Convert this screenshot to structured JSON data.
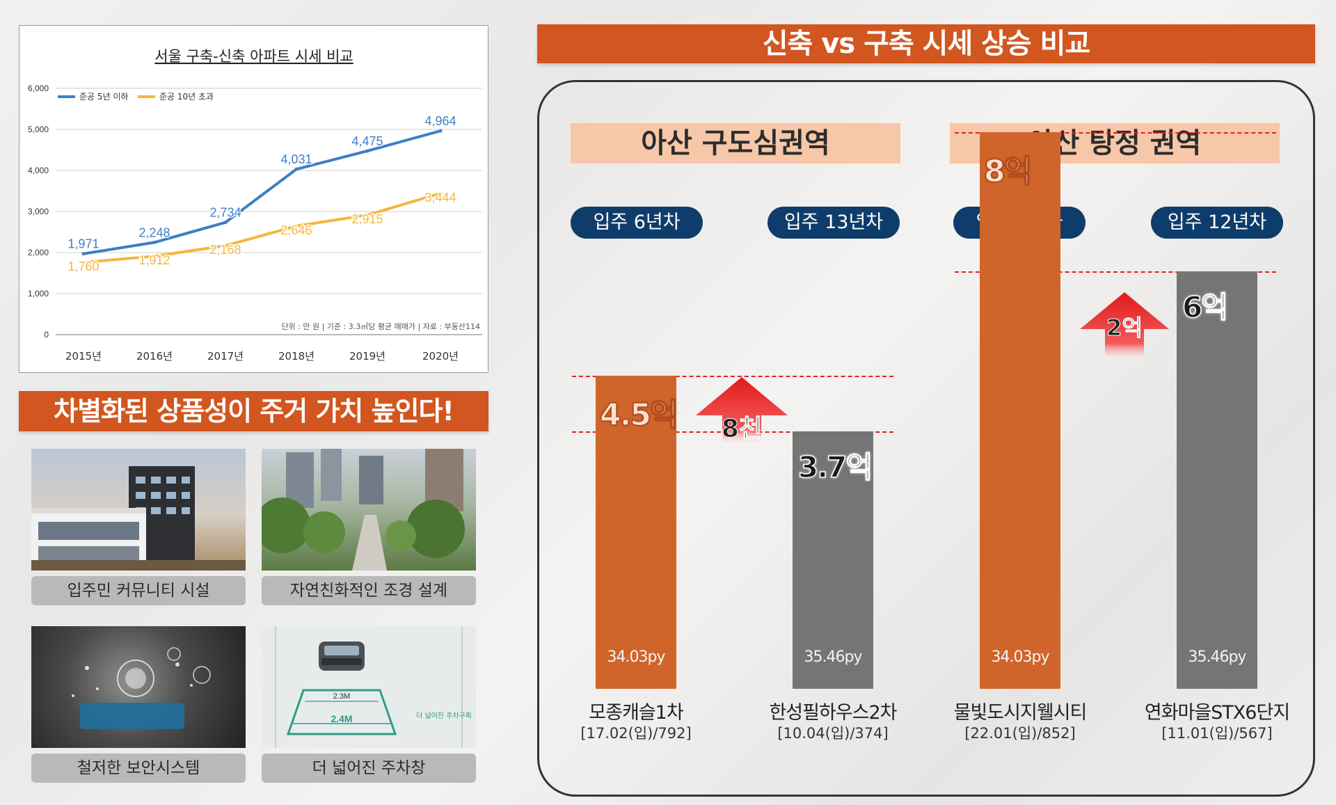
{
  "chart_data": [
    {
      "type": "line",
      "title": "서울 구축-신축 아파트 시세 비교",
      "categories": [
        "2015년",
        "2016년",
        "2017년",
        "2018년",
        "2019년",
        "2020년"
      ],
      "series": [
        {
          "name": "준공 5년 이하",
          "color": "#3b7fc4",
          "values": [
            1971,
            2248,
            2734,
            4031,
            4475,
            4964
          ],
          "labels": [
            "1,971",
            "2,248",
            "2,734",
            "4,031",
            "4,475",
            "4,964"
          ]
        },
        {
          "name": "준공 10년 초과",
          "color": "#f4b63e",
          "values": [
            1760,
            1912,
            2168,
            2646,
            2915,
            3444
          ],
          "labels": [
            "1,760",
            "1,912",
            "2,168",
            "2,646",
            "2,915",
            "3,444"
          ]
        }
      ],
      "ylim": [
        0,
        6000
      ],
      "yticks": [
        "0",
        "1,000",
        "2,000",
        "3,000",
        "4,000",
        "5,000",
        "6,000"
      ],
      "grid": true,
      "legend": "top-left",
      "note": "단위 : 만 원 | 기준 : 3.3㎡당 평균 매매가 | 자료 : 부동산114"
    },
    {
      "type": "bar",
      "title": "신축 vs 구축 시세 상승 비교",
      "unit": "억",
      "regions": [
        {
          "name": "아산 구도심권역",
          "diff_label": "8천",
          "bars": [
            {
              "badge": "입주 6년차",
              "value": 4.5,
              "value_label": "4.5억",
              "size": "34.03py",
              "name": "모종캐슬1차",
              "info": "[17.02(입)/792]",
              "color": "#d0652b"
            },
            {
              "badge": "입주 13년차",
              "value": 3.7,
              "value_label": "3.7억",
              "size": "35.46py",
              "name": "한성필하우스2차",
              "info": "[10.04(입)/374]",
              "color": "#757575"
            }
          ]
        },
        {
          "name": "아산 탕정 권역",
          "diff_label": "2억",
          "bars": [
            {
              "badge": "입주 1년차",
              "value": 8,
              "value_label": "8억",
              "size": "34.03py",
              "name": "물빛도시지웰시티",
              "info": "[22.01(입)/852]",
              "color": "#d0652b"
            },
            {
              "badge": "입주 12년차",
              "value": 6,
              "value_label": "6억",
              "size": "35.46py",
              "name": "연화마을STX6단지",
              "info": "[11.01(입)/567]",
              "color": "#757575"
            }
          ]
        }
      ]
    }
  ],
  "left_banner": "차별화된 상품성이 주거 가치 높인다!",
  "features": [
    {
      "caption": "입주민 커뮤니티 시설",
      "icon": "community-building-photo"
    },
    {
      "caption": "자연친화적인 조경 설계",
      "icon": "landscape-garden-photo"
    },
    {
      "caption": "철저한 보안시스템",
      "icon": "security-system-photo"
    },
    {
      "caption": "더 넓어진 주차창",
      "icon": "parking-lot-photo"
    }
  ],
  "parking_labels": {
    "inner": "2.3M",
    "outer": "2.4M",
    "side": "더 넓어진 주차구획"
  }
}
